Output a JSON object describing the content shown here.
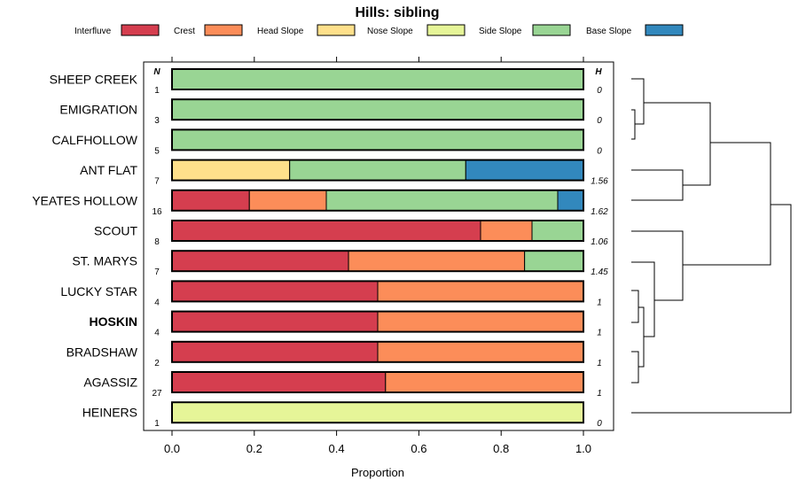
{
  "chart_data": {
    "type": "stacked-bar",
    "title": "Hills: sibling",
    "xlabel": "Proportion",
    "xlim": [
      0,
      1
    ],
    "xticks": [
      "0.0",
      "0.2",
      "0.4",
      "0.6",
      "0.8",
      "1.0"
    ],
    "n_header": "N",
    "h_header": "H",
    "legend": [
      {
        "name": "Interfluve",
        "color": "#D53E4F"
      },
      {
        "name": "Crest",
        "color": "#FC8D59"
      },
      {
        "name": "Head Slope",
        "color": "#FEE08B"
      },
      {
        "name": "Nose Slope",
        "color": "#E6F598"
      },
      {
        "name": "Side Slope",
        "color": "#99D594"
      },
      {
        "name": "Base Slope",
        "color": "#3288BD"
      }
    ],
    "rows": [
      {
        "label": "SHEEP CREEK",
        "n": "1",
        "h": "0",
        "bold": false,
        "values": [
          0,
          0,
          0,
          0,
          1.0,
          0
        ]
      },
      {
        "label": "EMIGRATION",
        "n": "3",
        "h": "0",
        "bold": false,
        "values": [
          0,
          0,
          0,
          0,
          1.0,
          0
        ]
      },
      {
        "label": "CALFHOLLOW",
        "n": "5",
        "h": "0",
        "bold": false,
        "values": [
          0,
          0,
          0,
          0,
          1.0,
          0
        ]
      },
      {
        "label": "ANT FLAT",
        "n": "7",
        "h": "1.56",
        "bold": false,
        "values": [
          0,
          0,
          0.286,
          0,
          0.428,
          0.286
        ]
      },
      {
        "label": "YEATES HOLLOW",
        "n": "16",
        "h": "1.62",
        "bold": false,
        "values": [
          0.188,
          0.187,
          0,
          0,
          0.5625,
          0.0625
        ]
      },
      {
        "label": "SCOUT",
        "n": "8",
        "h": "1.06",
        "bold": false,
        "values": [
          0.75,
          0.125,
          0,
          0,
          0.125,
          0
        ]
      },
      {
        "label": "ST. MARYS",
        "n": "7",
        "h": "1.45",
        "bold": false,
        "values": [
          0.429,
          0.428,
          0,
          0,
          0.143,
          0
        ]
      },
      {
        "label": "LUCKY STAR",
        "n": "4",
        "h": "1",
        "bold": false,
        "values": [
          0.5,
          0.5,
          0,
          0,
          0,
          0
        ]
      },
      {
        "label": "HOSKIN",
        "n": "4",
        "h": "1",
        "bold": true,
        "values": [
          0.5,
          0.5,
          0,
          0,
          0,
          0
        ]
      },
      {
        "label": "BRADSHAW",
        "n": "2",
        "h": "1",
        "bold": false,
        "values": [
          0.5,
          0.5,
          0,
          0,
          0,
          0
        ]
      },
      {
        "label": "AGASSIZ",
        "n": "27",
        "h": "1",
        "bold": false,
        "values": [
          0.519,
          0.481,
          0,
          0,
          0,
          0
        ]
      },
      {
        "label": "HEINERS",
        "n": "1",
        "h": "0",
        "bold": false,
        "values": [
          0,
          0,
          0,
          1.0,
          0,
          0
        ]
      }
    ]
  }
}
